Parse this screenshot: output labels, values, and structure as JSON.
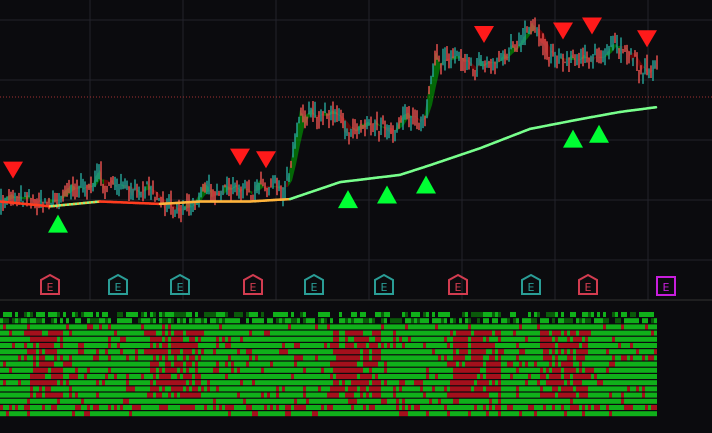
{
  "chart_data": {
    "type": "line",
    "title": "",
    "xlabel": "",
    "ylabel": "",
    "colors": {
      "background": "#0b0b0e",
      "grid": "#23232b",
      "candle_up": "#26a69a",
      "candle_down": "#ef5350",
      "sell_marker": "#ff1a1a",
      "buy_marker": "#00ff33",
      "cloud_bull": "#00b400",
      "cloud_bear": "#a00000",
      "ma_low": "#ff3c1e",
      "ma_mid": "#ffb43c",
      "ma_high": "#78ff8c",
      "heat_green": "#10b01a",
      "heat_dark_green": "#0a5a0a",
      "heat_red": "#a4101c",
      "earnings_red": "#d23c50",
      "earnings_teal": "#2a9d96",
      "earnings_magenta": "#c81edc",
      "last_price_line": "#c83c3c"
    },
    "price_series": {
      "name": "",
      "ylim": [
        0,
        100
      ],
      "anchors": [
        [
          0,
          26
        ],
        [
          40,
          24
        ],
        [
          100,
          34
        ],
        [
          150,
          28
        ],
        [
          175,
          20
        ],
        [
          210,
          30
        ],
        [
          250,
          31
        ],
        [
          285,
          28
        ],
        [
          300,
          60
        ],
        [
          330,
          62
        ],
        [
          350,
          54
        ],
        [
          400,
          57
        ],
        [
          425,
          62
        ],
        [
          435,
          85
        ],
        [
          470,
          80
        ],
        [
          500,
          83
        ],
        [
          532,
          100
        ],
        [
          545,
          85
        ],
        [
          570,
          82
        ],
        [
          600,
          86
        ],
        [
          625,
          90
        ],
        [
          640,
          78
        ],
        [
          657,
          82
        ]
      ],
      "ma_anchors": [
        [
          0,
          25
        ],
        [
          50,
          23
        ],
        [
          100,
          25
        ],
        [
          160,
          24
        ],
        [
          200,
          25
        ],
        [
          250,
          25
        ],
        [
          290,
          26
        ],
        [
          340,
          33
        ],
        [
          400,
          36
        ],
        [
          430,
          40
        ],
        [
          480,
          47
        ],
        [
          530,
          55
        ],
        [
          580,
          59
        ],
        [
          620,
          62
        ],
        [
          657,
          64
        ]
      ]
    },
    "sell_signals_x": [
      13,
      240,
      266,
      484,
      563,
      592,
      647
    ],
    "buy_signals_x": [
      58,
      348,
      387,
      426,
      573,
      599
    ],
    "earnings_markers": [
      {
        "x": 50,
        "label": "E",
        "style": "red"
      },
      {
        "x": 118,
        "label": "E",
        "style": "teal"
      },
      {
        "x": 180,
        "label": "E",
        "style": "teal"
      },
      {
        "x": 253,
        "label": "E",
        "style": "red"
      },
      {
        "x": 314,
        "label": "E",
        "style": "teal"
      },
      {
        "x": 384,
        "label": "E",
        "style": "teal"
      },
      {
        "x": 458,
        "label": "E",
        "style": "red"
      },
      {
        "x": 531,
        "label": "E",
        "style": "teal"
      },
      {
        "x": 588,
        "label": "E",
        "style": "red"
      },
      {
        "x": 666,
        "label": "E",
        "style": "magenta"
      }
    ],
    "heatmap_rows": 17,
    "heatmap_red_bands": [
      [
        30,
        60
      ],
      [
        150,
        200
      ],
      [
        330,
        380
      ],
      [
        450,
        500
      ],
      [
        540,
        590
      ]
    ]
  }
}
